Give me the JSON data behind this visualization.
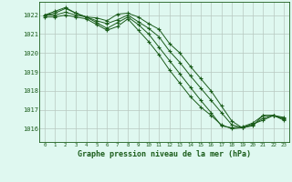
{
  "title": "Graphe pression niveau de la mer (hPa)",
  "xlim": [
    -0.5,
    23.5
  ],
  "ylim": [
    1015.3,
    1022.7
  ],
  "yticks": [
    1016,
    1017,
    1018,
    1019,
    1020,
    1021,
    1022
  ],
  "xticks": [
    0,
    1,
    2,
    3,
    4,
    5,
    6,
    7,
    8,
    9,
    10,
    11,
    12,
    13,
    14,
    15,
    16,
    17,
    18,
    19,
    20,
    21,
    22,
    23
  ],
  "bg_color": "#dff8f0",
  "plot_bg": "#dff8f0",
  "line_color": "#1a5c1a",
  "grid_color": "#b8c8c0",
  "series": [
    [
      1022.0,
      1022.2,
      1022.4,
      1022.1,
      1021.9,
      1021.85,
      1021.7,
      1022.05,
      1022.1,
      1021.9,
      1021.55,
      1021.25,
      1020.5,
      1020.0,
      1019.3,
      1018.65,
      1018.0,
      1017.2,
      1016.4,
      1016.05,
      1016.15,
      1016.7,
      1016.7,
      1016.6
    ],
    [
      1022.0,
      1022.1,
      1022.35,
      1022.1,
      1021.9,
      1021.7,
      1021.55,
      1021.75,
      1022.0,
      1021.65,
      1021.3,
      1020.85,
      1020.1,
      1019.5,
      1018.8,
      1018.15,
      1017.5,
      1016.85,
      1016.2,
      1016.05,
      1016.25,
      1016.45,
      1016.7,
      1016.55
    ],
    [
      1022.0,
      1022.0,
      1022.15,
      1022.0,
      1021.9,
      1021.6,
      1021.3,
      1021.6,
      1021.9,
      1021.5,
      1021.0,
      1020.3,
      1019.6,
      1018.9,
      1018.2,
      1017.5,
      1016.85,
      1016.15,
      1016.05,
      1016.1,
      1016.3,
      1016.7,
      1016.7,
      1016.5
    ],
    [
      1021.9,
      1021.9,
      1022.0,
      1021.9,
      1021.8,
      1021.5,
      1021.2,
      1021.4,
      1021.8,
      1021.2,
      1020.6,
      1019.9,
      1019.1,
      1018.4,
      1017.7,
      1017.15,
      1016.7,
      1016.2,
      1016.0,
      1016.05,
      1016.2,
      1016.55,
      1016.7,
      1016.45
    ]
  ]
}
